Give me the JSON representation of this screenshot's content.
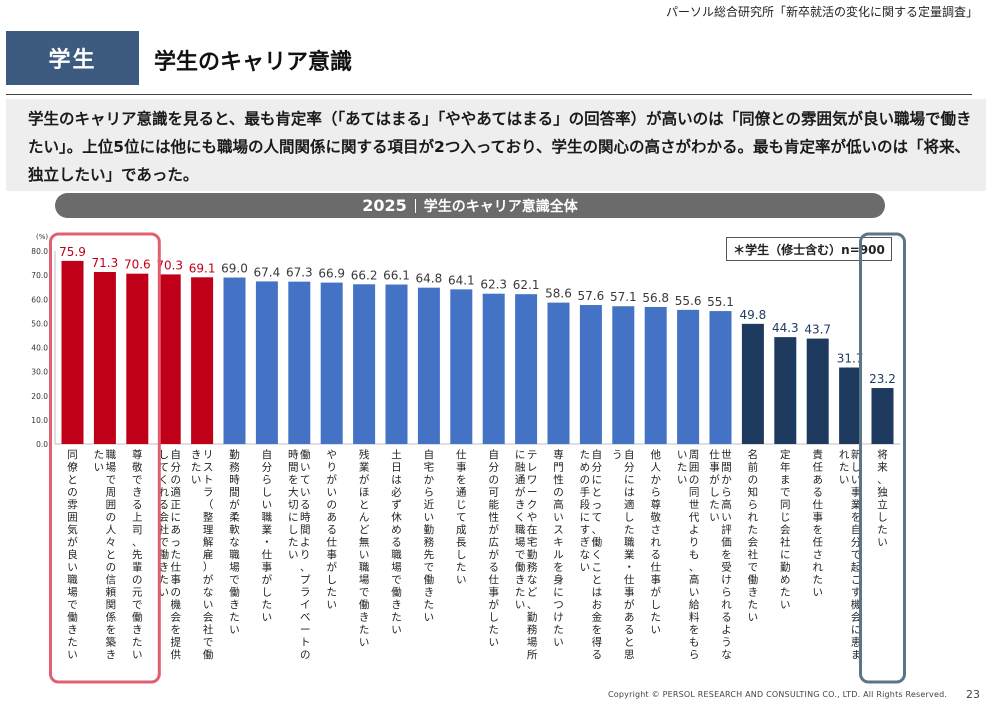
{
  "header": {
    "source": "パーソル総合研究所「新卒就活の変化に関する定量調査」",
    "badge": "学生",
    "title": "学生のキャリア意識"
  },
  "summary": {
    "text": "学生のキャリア意識を見ると、最も肯定率（「あてはまる」「ややあてはまる」の回答率）が高いのは「同僚との雰囲気が良い職場で働きたい」。上位5位には他にも職場の人間関係に関する項目が2つ入っており、学生の関心の高さがわかる。最も肯定率が低いのは「将来、独立したい」であった。"
  },
  "banner": {
    "year": "2025",
    "label": "学生のキャリア意識全体"
  },
  "sample_note": "＊学生（修士含む）n=900",
  "footer": {
    "copyright": "Copyright © PERSOL RESEARCH AND CONSULTING CO., LTD. All Rights Reserved.",
    "page": "23"
  },
  "colors": {
    "top5": "#c00018",
    "middle": "#4472c4",
    "bottom": "#1f3a5f",
    "highlight_top": "#e06070",
    "highlight_bottom": "#5a7585"
  },
  "chart_data": {
    "type": "bar",
    "ylabel": "(%)",
    "ylim": [
      0,
      80
    ],
    "yticks": [
      "0.0",
      "10.0",
      "20.0",
      "30.0",
      "40.0",
      "50.0",
      "60.0",
      "70.0",
      "80.0"
    ],
    "grid": false,
    "categories": [
      "同僚との雰囲気が良い職場で働きたい",
      "職場で周囲の人々との信頼関係を築きたい",
      "尊敬できる上司、先輩の元で働きたい",
      "自分の適正にあった仕事の機会を提供してくれる会社で働きたい",
      "リストラ（整理解雇）がない会社で働きたい",
      "勤務時間が柔軟な職場で働きたい",
      "自分らしい職業・仕事がしたい",
      "働いている時間より、プライベートの時間を大切にしたい",
      "やりがいのある仕事がしたい",
      "残業がほとんど無い職場で働きたい",
      "土日は必ず休める職場で働きたい",
      "自宅から近い勤務先で働きたい",
      "仕事を通じて成長したい",
      "自分の可能性が広がる仕事がしたい",
      "テレワークや在宅勤務など、勤務場所に融通がきく職場で働きたい",
      "専門性の高いスキルを身につけたい",
      "自分にとって、働くことはお金を得るための手段にすぎない",
      "自分には適した職業・仕事があると思う",
      "他人から尊敬される仕事がしたい",
      "周囲の同世代よりも、高い給料をもらいたい",
      "世間から高い評価を受けられるような仕事がしたい",
      "名前の知られた会社で働きたい",
      "定年まで同じ会社に勤めたい",
      "責任ある仕事を任されたい",
      "新しい事業を自分で起こす機会に恵まれたい",
      "将来、独立したい"
    ],
    "values": [
      75.9,
      71.3,
      70.6,
      70.3,
      69.1,
      69.0,
      67.4,
      67.3,
      66.9,
      66.2,
      66.1,
      64.8,
      64.1,
      62.3,
      62.1,
      58.6,
      57.6,
      57.1,
      56.8,
      55.6,
      55.1,
      49.8,
      44.3,
      43.7,
      31.7,
      23.2
    ],
    "value_labels": [
      "75.9",
      "71.3",
      "70.6",
      "70.3",
      "69.1",
      "69.0",
      "67.4",
      "67.3",
      "66.9",
      "66.2",
      "66.1",
      "64.8",
      "64.1",
      "62.3",
      "62.1",
      "58.6",
      "57.6",
      "57.1",
      "56.8",
      "55.6",
      "55.1",
      "49.8",
      "44.3",
      "43.7",
      "31.7",
      "23.2"
    ],
    "color_groups": {
      "top5": [
        0,
        4
      ],
      "middle": [
        5,
        20
      ],
      "bottom": [
        21,
        25
      ]
    },
    "highlighted": [
      [
        0,
        2
      ],
      [
        25,
        25
      ]
    ]
  }
}
